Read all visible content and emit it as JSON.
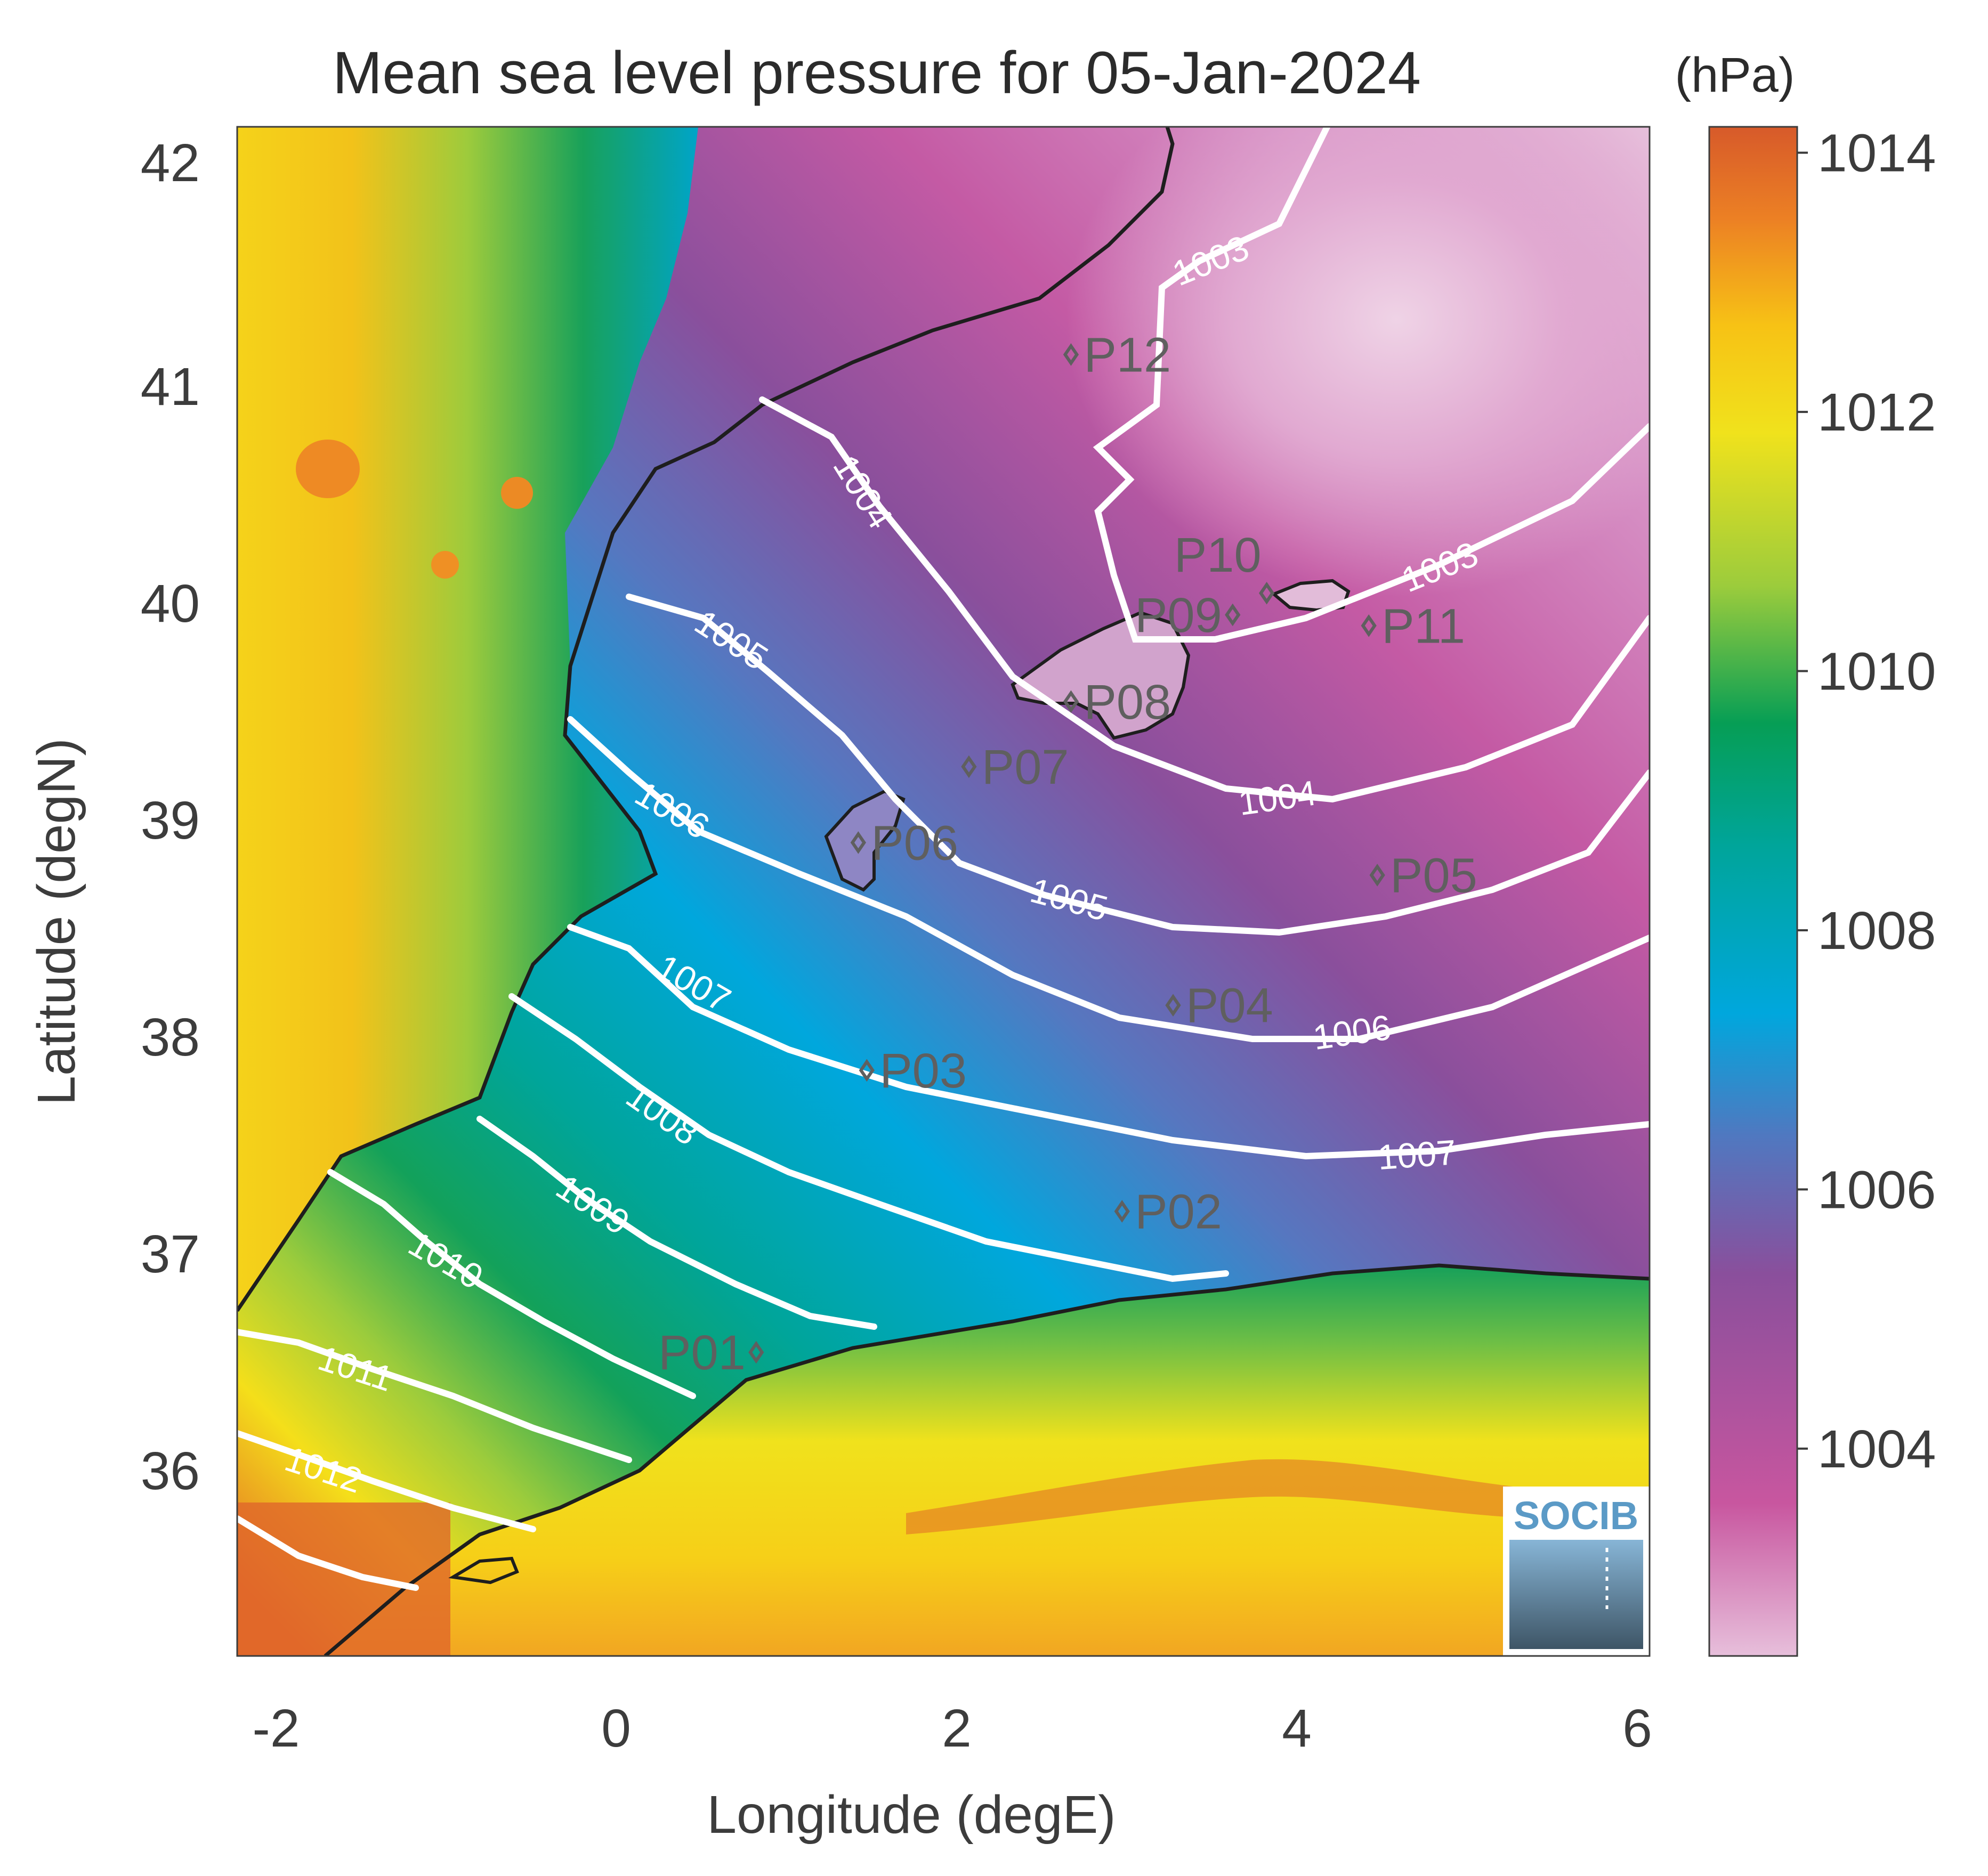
{
  "title": "Mean sea level pressure for 05-Jan-2024",
  "colorbar": {
    "unit_label": "(hPa)",
    "ticks": [
      "1004",
      "1006",
      "1008",
      "1010",
      "1012",
      "1014"
    ],
    "range": [
      1002.4,
      1014.2
    ],
    "colors": [
      "#e7bfdb",
      "#c8569f",
      "#8a4f9c",
      "#5078c0",
      "#00a7dd",
      "#00a58a",
      "#16a05a",
      "#9ccc3c",
      "#f0e21c",
      "#f7c215",
      "#ec7f24",
      "#d75a2a"
    ]
  },
  "axes": {
    "xlabel": "Longitude (degE)",
    "ylabel": "Latitude (degN)",
    "xticks": [
      "-2",
      "0",
      "2",
      "4",
      "6"
    ],
    "yticks": [
      "36",
      "37",
      "38",
      "39",
      "40",
      "41",
      "42"
    ],
    "xlim": [
      -2.2,
      6.1
    ],
    "ylim": [
      35.1,
      42.15
    ]
  },
  "contours": [
    {
      "label": "1003"
    },
    {
      "label": "1003"
    },
    {
      "label": "1004"
    },
    {
      "label": "1004"
    },
    {
      "label": "1005"
    },
    {
      "label": "1005"
    },
    {
      "label": "1006"
    },
    {
      "label": "1006"
    },
    {
      "label": "1007"
    },
    {
      "label": "1007"
    },
    {
      "label": "1008"
    },
    {
      "label": "1009"
    },
    {
      "label": "1010"
    },
    {
      "label": "1011"
    },
    {
      "label": "1012"
    }
  ],
  "stations": [
    {
      "id": "P01",
      "lon": 0.85,
      "lat": 36.5
    },
    {
      "id": "P02",
      "lon": 3.0,
      "lat": 37.15
    },
    {
      "id": "P03",
      "lon": 1.5,
      "lat": 37.8
    },
    {
      "id": "P04",
      "lon": 3.3,
      "lat": 38.1
    },
    {
      "id": "P05",
      "lon": 4.5,
      "lat": 38.7
    },
    {
      "id": "P06",
      "lon": 1.45,
      "lat": 38.85
    },
    {
      "id": "P07",
      "lon": 2.1,
      "lat": 39.2
    },
    {
      "id": "P08",
      "lon": 2.7,
      "lat": 39.5
    },
    {
      "id": "P09",
      "lon": 3.65,
      "lat": 39.9
    },
    {
      "id": "P10",
      "lon": 3.85,
      "lat": 40.0
    },
    {
      "id": "P11",
      "lon": 4.45,
      "lat": 39.85
    },
    {
      "id": "P12",
      "lon": 2.7,
      "lat": 41.1
    }
  ],
  "logo": {
    "text": "SOCIB"
  }
}
